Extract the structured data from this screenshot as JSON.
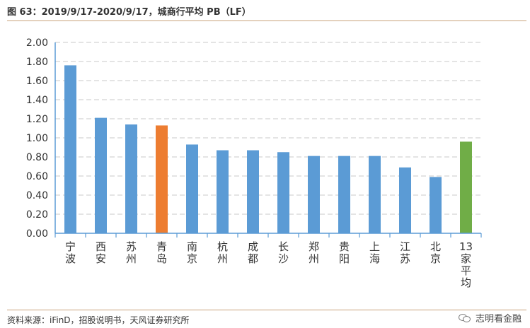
{
  "header": {
    "title": "图 63：2019/9/17-2020/9/17，城商行平均 PB（LF）"
  },
  "footer": {
    "source": "资料来源：iFinD，招股说明书，天风证券研究所",
    "watermark": "志明看金融"
  },
  "chart_data": {
    "type": "bar",
    "title": "图 63：2019/9/17-2020/9/17，城商行平均 PB（LF）",
    "categories": [
      "宁波",
      "西安",
      "苏州",
      "青岛",
      "南京",
      "杭州",
      "成都",
      "长沙",
      "郑州",
      "贵阳",
      "上海",
      "江苏",
      "北京",
      "13家平均"
    ],
    "values": [
      1.76,
      1.21,
      1.14,
      1.13,
      0.93,
      0.87,
      0.87,
      0.85,
      0.81,
      0.81,
      0.81,
      0.69,
      0.59,
      0.96
    ],
    "colors": [
      "#5b9bd5",
      "#5b9bd5",
      "#5b9bd5",
      "#ed7d31",
      "#5b9bd5",
      "#5b9bd5",
      "#5b9bd5",
      "#5b9bd5",
      "#5b9bd5",
      "#5b9bd5",
      "#5b9bd5",
      "#5b9bd5",
      "#5b9bd5",
      "#70ad47"
    ],
    "ylim": [
      0,
      2.0
    ],
    "yticks": [
      "0.00",
      "0.20",
      "0.40",
      "0.60",
      "0.80",
      "1.00",
      "1.20",
      "1.40",
      "1.60",
      "1.80",
      "2.00"
    ],
    "grid": true,
    "legend": "none"
  }
}
